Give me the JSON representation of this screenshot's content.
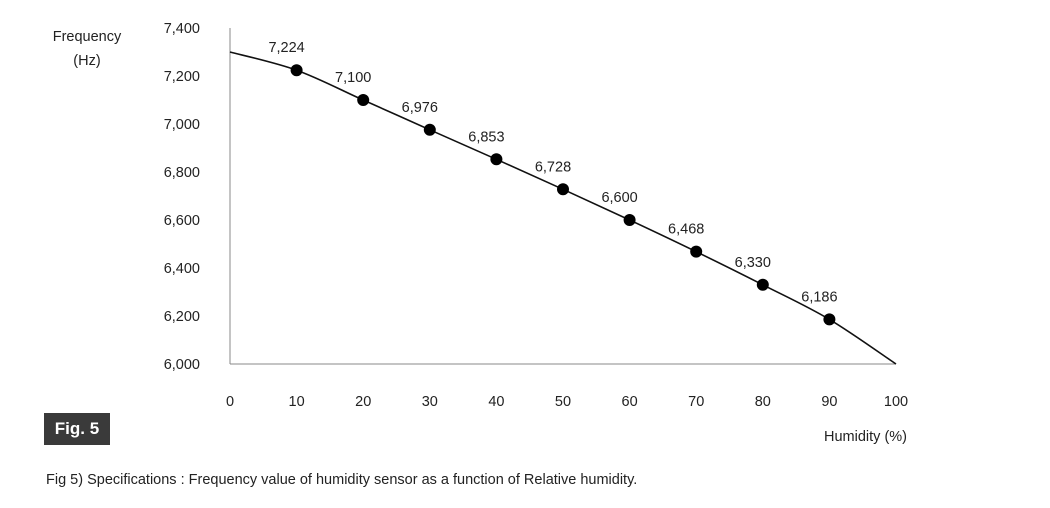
{
  "chart_data": {
    "type": "line",
    "ylabel_line1": "Frequency",
    "ylabel_line2": "(Hz)",
    "xlabel": "Humidity (%)",
    "xlim": [
      0,
      100
    ],
    "ylim": [
      6000,
      7400
    ],
    "x_ticks": [
      "0",
      "10",
      "20",
      "30",
      "40",
      "50",
      "60",
      "70",
      "80",
      "90",
      "100"
    ],
    "y_ticks": [
      "7,400",
      "7,200",
      "7,000",
      "6,800",
      "6,600",
      "6,400",
      "6,200",
      "6,000"
    ],
    "curve": {
      "x": [
        0,
        10,
        20,
        30,
        40,
        50,
        60,
        70,
        80,
        90,
        100
      ],
      "y": [
        7300,
        7224,
        7100,
        6976,
        6853,
        6728,
        6600,
        6468,
        6330,
        6186,
        6000
      ]
    },
    "points": {
      "x": [
        10,
        20,
        30,
        40,
        50,
        60,
        70,
        80,
        90
      ],
      "y": [
        7224,
        7100,
        6976,
        6853,
        6728,
        6600,
        6468,
        6330,
        6186
      ],
      "labels": [
        "7,224",
        "7,100",
        "6,976",
        "6,853",
        "6,728",
        "6,600",
        "6,468",
        "6,330",
        "6,186"
      ]
    },
    "grid": false,
    "line_color": "#111111",
    "marker_color": "#000000"
  },
  "figure": {
    "badge": "Fig. 5",
    "caption": "Fig 5) Specifications : Frequency value of humidity sensor as a function of Relative humidity."
  }
}
